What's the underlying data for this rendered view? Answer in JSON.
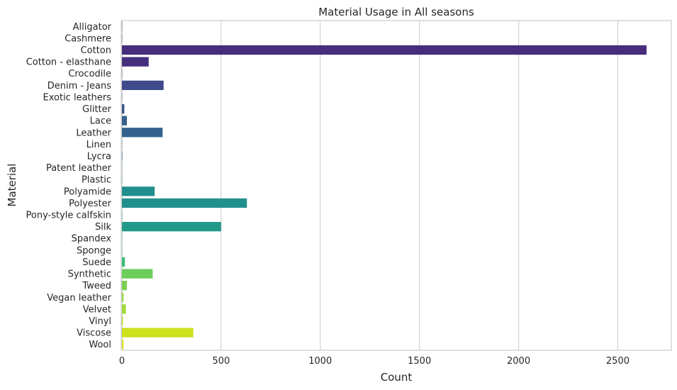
{
  "chart_data": {
    "type": "bar",
    "orientation": "horizontal",
    "title": "Material Usage in All seasons",
    "xlabel": "Count",
    "ylabel": "Material",
    "xlim": [
      0,
      2770
    ],
    "xticks": [
      0,
      500,
      1000,
      1500,
      2000,
      2500
    ],
    "grid": "vertical",
    "categories": [
      "Alligator",
      "Cashmere",
      "Cotton",
      "Cotton - elasthane",
      "Crocodile",
      "Denim - Jeans",
      "Exotic leathers",
      "Glitter",
      "Lace",
      "Leather",
      "Linen",
      "Lycra",
      "Patent leather",
      "Plastic",
      "Polyamide",
      "Polyester",
      "Pony-style calfskin",
      "Silk",
      "Spandex",
      "Sponge",
      "Suede",
      "Synthetic",
      "Tweed",
      "Vegan leather",
      "Velvet",
      "Vinyl",
      "Viscose",
      "Wool"
    ],
    "values": [
      1,
      1,
      2645,
      135,
      1,
      210,
      1,
      12,
      25,
      205,
      1,
      2,
      1,
      1,
      165,
      630,
      1,
      500,
      1,
      1,
      15,
      155,
      25,
      8,
      20,
      5,
      360,
      8
    ],
    "colors": [
      "#450457",
      "#460b5e",
      "#472d7b",
      "#46307e",
      "#45337f",
      "#3e4a89",
      "#3f4889",
      "#3b528b",
      "#355f8d",
      "#33638d",
      "#2f6c8e",
      "#2b748e",
      "#287c8e",
      "#24868e",
      "#218e8d",
      "#21908d",
      "#1f988b",
      "#239a89",
      "#27ad81",
      "#35b779",
      "#3dbc74",
      "#6ccd5a",
      "#7ad151",
      "#97d83f",
      "#a2da37",
      "#bddf26",
      "#cde11d",
      "#e2e418"
    ]
  }
}
